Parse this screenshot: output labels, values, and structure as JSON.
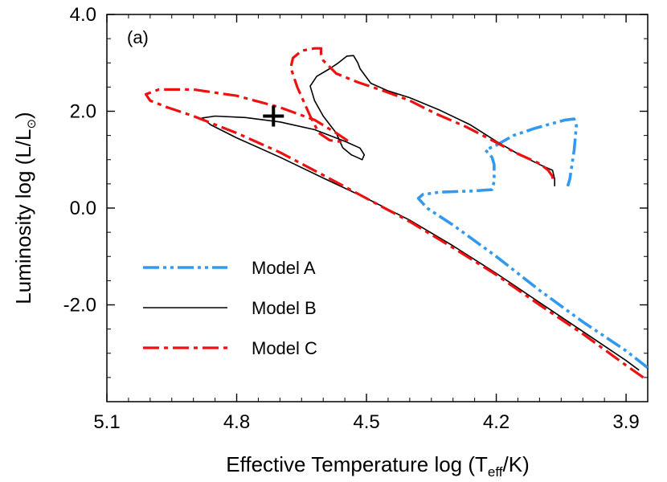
{
  "chart_data": {
    "type": "line",
    "panel_label": "(a)",
    "xlabel": {
      "prefix": "Effective Temperature  log (T",
      "subscript": "eff",
      "suffix": "/K)"
    },
    "ylabel": {
      "prefix": "Luminosity  log (L/L",
      "symbol": "⊙",
      "suffix": ")"
    },
    "xlim": [
      5.1,
      3.85
    ],
    "ylim": [
      -4.0,
      4.0
    ],
    "x_reversed": true,
    "x_ticks": [
      {
        "value": 5.1,
        "label": "5.1"
      },
      {
        "value": 4.8,
        "label": "4.8"
      },
      {
        "value": 4.5,
        "label": "4.5"
      },
      {
        "value": 4.2,
        "label": "4.2"
      },
      {
        "value": 3.9,
        "label": "3.9"
      }
    ],
    "y_ticks": [
      {
        "value": 4.0,
        "label": "4.0"
      },
      {
        "value": 2.0,
        "label": "2.0"
      },
      {
        "value": 0.0,
        "label": "0.0"
      },
      {
        "value": -2.0,
        "label": "-2.0"
      }
    ],
    "legend_position": "bottom-left",
    "marker": {
      "name": "observed-star",
      "symbol": "+",
      "x": 4.715,
      "y": 1.9
    },
    "series": [
      {
        "name": "Model A",
        "color": "#3399ee",
        "dash": "dash-dot-dot",
        "points": [
          [
            3.85,
            -3.3
          ],
          [
            3.9,
            -2.95
          ],
          [
            4.0,
            -2.35
          ],
          [
            4.1,
            -1.7
          ],
          [
            4.2,
            -1.0
          ],
          [
            4.3,
            -0.35
          ],
          [
            4.36,
            0.0
          ],
          [
            4.38,
            0.2
          ],
          [
            4.37,
            0.28
          ],
          [
            4.33,
            0.33
          ],
          [
            4.26,
            0.35
          ],
          [
            4.21,
            0.38
          ],
          [
            4.205,
            0.55
          ],
          [
            4.205,
            0.9
          ],
          [
            4.21,
            1.05
          ],
          [
            4.225,
            1.2
          ],
          [
            4.2,
            1.3
          ],
          [
            4.16,
            1.5
          ],
          [
            4.11,
            1.65
          ],
          [
            4.07,
            1.75
          ],
          [
            4.04,
            1.82
          ],
          [
            4.02,
            1.84
          ],
          [
            4.015,
            1.7
          ],
          [
            4.02,
            1.2
          ],
          [
            4.03,
            0.6
          ],
          [
            4.035,
            0.45
          ]
        ]
      },
      {
        "name": "Model B",
        "color": "#000000",
        "dash": "solid",
        "points": [
          [
            3.87,
            -3.35
          ],
          [
            3.9,
            -3.15
          ],
          [
            4.0,
            -2.55
          ],
          [
            4.1,
            -1.95
          ],
          [
            4.2,
            -1.35
          ],
          [
            4.3,
            -0.78
          ],
          [
            4.4,
            -0.25
          ],
          [
            4.5,
            0.2
          ],
          [
            4.6,
            0.62
          ],
          [
            4.7,
            1.05
          ],
          [
            4.8,
            1.45
          ],
          [
            4.86,
            1.72
          ],
          [
            4.88,
            1.86
          ],
          [
            4.85,
            1.9
          ],
          [
            4.78,
            1.87
          ],
          [
            4.7,
            1.78
          ],
          [
            4.62,
            1.62
          ],
          [
            4.55,
            1.38
          ],
          [
            4.515,
            1.24
          ],
          [
            4.505,
            1.1
          ],
          [
            4.51,
            1.0
          ],
          [
            4.52,
            1.04
          ],
          [
            4.535,
            1.1
          ],
          [
            4.555,
            1.25
          ],
          [
            4.57,
            1.55
          ],
          [
            4.6,
            1.9
          ],
          [
            4.62,
            2.22
          ],
          [
            4.63,
            2.52
          ],
          [
            4.615,
            2.72
          ],
          [
            4.585,
            2.88
          ],
          [
            4.565,
            3.0
          ],
          [
            4.545,
            3.14
          ],
          [
            4.53,
            3.15
          ],
          [
            4.52,
            3.0
          ],
          [
            4.515,
            2.88
          ],
          [
            4.49,
            2.58
          ],
          [
            4.45,
            2.42
          ],
          [
            4.4,
            2.28
          ],
          [
            4.33,
            2.02
          ],
          [
            4.26,
            1.72
          ],
          [
            4.2,
            1.38
          ],
          [
            4.15,
            1.12
          ],
          [
            4.1,
            0.9
          ],
          [
            4.07,
            0.78
          ],
          [
            4.065,
            0.6
          ],
          [
            4.065,
            0.45
          ]
        ]
      },
      {
        "name": "Model C",
        "color": "#ee1111",
        "dash": "dash-dot",
        "points": [
          [
            3.86,
            -3.5
          ],
          [
            3.9,
            -3.25
          ],
          [
            4.0,
            -2.6
          ],
          [
            4.1,
            -2.0
          ],
          [
            4.2,
            -1.38
          ],
          [
            4.3,
            -0.82
          ],
          [
            4.4,
            -0.28
          ],
          [
            4.5,
            0.2
          ],
          [
            4.6,
            0.68
          ],
          [
            4.7,
            1.15
          ],
          [
            4.8,
            1.55
          ],
          [
            4.9,
            1.9
          ],
          [
            4.96,
            2.08
          ],
          [
            5.0,
            2.22
          ],
          [
            5.01,
            2.35
          ],
          [
            4.98,
            2.45
          ],
          [
            4.9,
            2.45
          ],
          [
            4.8,
            2.32
          ],
          [
            4.7,
            2.08
          ],
          [
            4.62,
            1.82
          ],
          [
            4.57,
            1.55
          ],
          [
            4.545,
            1.4
          ],
          [
            4.55,
            1.36
          ],
          [
            4.585,
            1.4
          ],
          [
            4.61,
            1.55
          ],
          [
            4.63,
            1.9
          ],
          [
            4.66,
            2.5
          ],
          [
            4.675,
            2.9
          ],
          [
            4.67,
            3.1
          ],
          [
            4.65,
            3.25
          ],
          [
            4.62,
            3.3
          ],
          [
            4.605,
            3.3
          ],
          [
            4.605,
            3.18
          ],
          [
            4.6,
            3.05
          ],
          [
            4.57,
            2.78
          ],
          [
            4.52,
            2.6
          ],
          [
            4.46,
            2.42
          ],
          [
            4.4,
            2.22
          ],
          [
            4.34,
            1.95
          ],
          [
            4.27,
            1.68
          ],
          [
            4.21,
            1.4
          ],
          [
            4.15,
            1.12
          ],
          [
            4.1,
            0.92
          ],
          [
            4.08,
            0.78
          ],
          [
            4.07,
            0.65
          ],
          [
            4.07,
            0.55
          ]
        ]
      }
    ]
  }
}
